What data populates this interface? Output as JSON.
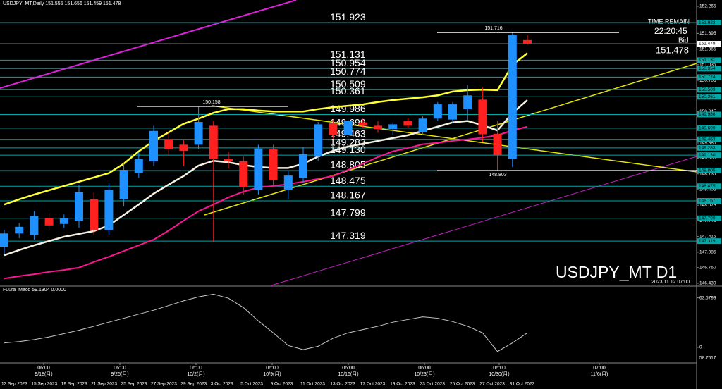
{
  "header": {
    "title": "USDJPY_MT,Daily 151.555 151.656 151.459 151.478",
    "time_remain_label": "TIME REMAIN",
    "time_remain": "22:20:45",
    "bid_label": "Bid",
    "bid": 151.478,
    "symbol": "USDJPY_MT D1",
    "timestamp": "2023.11.12 07:00"
  },
  "chart_data": [
    {
      "type": "candlestick",
      "up_color": "#1e90ff",
      "down_color": "#ff2020",
      "level_color": "#00a8a8",
      "mark_color": "#ffffff",
      "ylim": [
        146.385,
        152.399
      ],
      "yticks": [
        152.265,
        151.695,
        151.365,
        {
          "value": 151.035,
          "label": "151.035"
        },
        150.705,
        150.375,
        150.045,
        149.715,
        149.385,
        149.065,
        148.735,
        148.405,
        148.075,
        147.745,
        147.415,
        147.085,
        {
          "value": 146.76,
          "label": "146.760"
        },
        {
          "value": 146.43,
          "label": "146.430"
        }
      ],
      "categories": [
        "13 Sep 2023",
        null,
        "15 Sep 2023",
        null,
        "19 Sep 2023",
        null,
        "21 Sep 2023",
        null,
        "25 Sep 2023",
        null,
        "27 Sep 2023",
        null,
        "29 Sep 2023",
        null,
        "3 Oct 2023",
        null,
        "5 Oct 2023",
        null,
        "9 Oct 2023",
        null,
        "11 Oct 2023",
        null,
        "13 Oct 2023",
        null,
        "17 Oct 2023",
        null,
        "19 Oct 2023",
        null,
        "23 Oct 2023",
        null,
        "25 Oct 2023",
        null,
        "27 Oct 2023",
        null,
        "31 Oct 2023",
        null
      ],
      "time_labels": [
        {
          "time": "06:00",
          "date": "9/18(月)"
        },
        {
          "time": "06:00",
          "date": "9/25(月)"
        },
        {
          "time": "06:00",
          "date": "10/2(月)"
        },
        {
          "time": "06:00",
          "date": "10/9(月)"
        },
        {
          "time": "06:00",
          "date": "10/16(月)"
        },
        {
          "time": "06:00",
          "date": "10/23(月)"
        },
        {
          "time": "06:00",
          "date": "10/30(月)"
        },
        {
          "time": "07:00",
          "date": "11/6(月)"
        }
      ],
      "open": [
        147.2,
        147.48,
        147.45,
        147.8,
        147.68,
        147.75,
        148.2,
        147.55,
        148.2,
        148.75,
        149.0,
        149.47,
        149.35,
        149.35,
        149.75,
        149.05,
        149.0,
        148.4,
        149.25,
        148.4,
        148.65,
        149.1,
        149.8,
        149.55,
        149.82,
        149.75,
        149.68,
        149.85,
        149.62,
        149.9,
        149.88,
        150.1,
        150.3,
        149.58,
        149.05,
        151.555
      ],
      "high": [
        147.55,
        147.7,
        147.95,
        147.92,
        147.88,
        148.5,
        148.35,
        148.55,
        148.95,
        149.2,
        149.75,
        149.62,
        149.45,
        150.16,
        149.85,
        149.2,
        149.1,
        149.35,
        149.35,
        148.8,
        149.3,
        149.83,
        149.88,
        149.9,
        149.9,
        149.85,
        149.82,
        149.92,
        149.95,
        150.25,
        150.25,
        150.6,
        150.55,
        149.85,
        151.716,
        151.656
      ],
      "low": [
        147.05,
        147.38,
        147.35,
        147.55,
        147.6,
        147.6,
        147.45,
        147.45,
        148.05,
        148.65,
        148.9,
        149.1,
        148.9,
        149.25,
        147.3,
        148.85,
        148.3,
        148.3,
        148.5,
        148.2,
        148.55,
        149.0,
        149.48,
        149.45,
        149.7,
        149.6,
        149.55,
        149.7,
        149.55,
        149.85,
        149.8,
        149.85,
        149.4,
        148.81,
        148.88,
        151.459
      ],
      "close": [
        147.48,
        147.62,
        147.85,
        147.65,
        147.8,
        148.35,
        147.55,
        148.4,
        148.82,
        149.05,
        149.64,
        149.25,
        149.22,
        149.83,
        149.05,
        149.0,
        148.45,
        149.27,
        148.6,
        148.7,
        149.15,
        149.78,
        149.55,
        149.85,
        149.75,
        149.68,
        149.78,
        149.75,
        149.9,
        150.2,
        150.2,
        150.39,
        149.57,
        149.13,
        151.66,
        151.478
      ],
      "overlays": [
        {
          "color": "#ff1493",
          "width": 2,
          "values": [
            146.53,
            146.58,
            146.62,
            146.67,
            146.71,
            146.76,
            146.88,
            146.99,
            147.11,
            147.23,
            147.35,
            147.54,
            147.75,
            147.95,
            148.09,
            148.24,
            148.36,
            148.45,
            148.48,
            148.52,
            148.57,
            148.63,
            148.69,
            148.82,
            148.95,
            149.09,
            149.21,
            149.28,
            149.36,
            149.39,
            149.43,
            149.46,
            149.5,
            149.55,
            149.65,
            149.73
          ]
        },
        {
          "color": "#ffff33",
          "width": 2.5,
          "values": [
            148.09,
            148.2,
            148.3,
            148.39,
            148.48,
            148.57,
            148.66,
            148.75,
            148.95,
            149.21,
            149.43,
            149.61,
            149.79,
            149.9,
            150.02,
            150.1,
            150.1,
            150.07,
            150.05,
            150.05,
            150.05,
            150.1,
            150.14,
            150.17,
            150.2,
            150.25,
            150.29,
            150.32,
            150.35,
            150.39,
            150.47,
            150.5,
            150.51,
            150.5,
            151.03,
            151.28
          ]
        },
        {
          "color": "#f5f0e0",
          "width": 2.5,
          "values": [
            147.02,
            147.13,
            147.23,
            147.32,
            147.41,
            147.47,
            147.53,
            147.65,
            147.87,
            148.09,
            148.32,
            148.51,
            148.69,
            148.91,
            149.01,
            148.98,
            148.92,
            148.88,
            148.86,
            148.86,
            148.95,
            149.1,
            149.22,
            149.31,
            149.37,
            149.43,
            149.49,
            149.55,
            149.64,
            149.73,
            149.82,
            149.85,
            149.76,
            149.65,
            150.02,
            150.29
          ]
        }
      ],
      "levels": [
        151.923,
        151.131,
        150.954,
        150.774,
        150.509,
        150.361,
        149.986,
        149.699,
        149.463,
        149.283,
        {
          "value": 149.13,
          "label": "149.130"
        },
        148.805,
        148.475,
        148.167,
        147.799,
        147.319
      ],
      "marks": [
        151.716,
        150.158,
        148.803
      ]
    },
    {
      "type": "line",
      "title": "Fuura_Macd 59.1304 0.0000",
      "color": "#c8c8c8",
      "ylim": [
        -20,
        75
      ],
      "yticks": [
        63.5799,
        {
          "value": 0,
          "label": "0"
        }
      ],
      "scale_min_label": "58.7617",
      "values": [
        5.7,
        7.4,
        10.0,
        13.4,
        17.7,
        22.0,
        27.1,
        32.3,
        37.4,
        42.6,
        47.7,
        53.7,
        59.7,
        64.8,
        68.3,
        63.1,
        51.1,
        34.0,
        18.6,
        2.3,
        -2.9,
        1.4,
        11.7,
        18.6,
        22.9,
        27.1,
        32.3,
        35.7,
        39.1,
        37.4,
        33.1,
        27.1,
        18.6,
        -5.4,
        5.7,
        18.6
      ]
    }
  ]
}
